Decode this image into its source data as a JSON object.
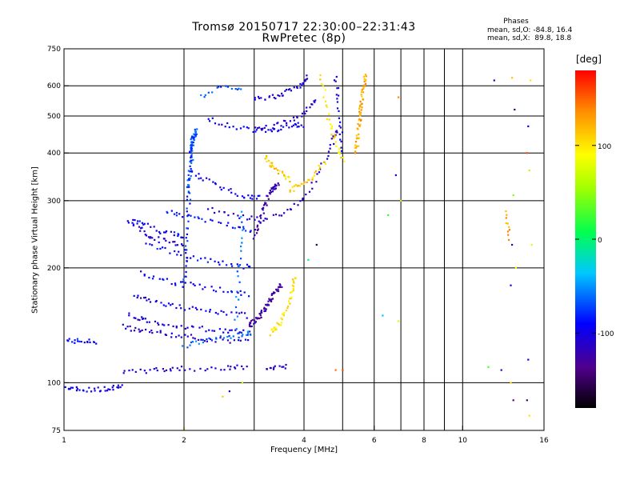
{
  "title_line1": "Tromsø 20150717 22:30:00–22:31:43",
  "title_line2": "RwPretec (8p)",
  "phases": {
    "title": "Phases",
    "line_o": "mean, sd,O: -84.8, 16.4",
    "line_x": "mean, sd,X:  89.8, 18.8"
  },
  "colorbar": {
    "unit": "[deg]",
    "range": [
      -180,
      180
    ],
    "ticks": [
      {
        "label": "100",
        "value": 100
      },
      {
        "label": "0",
        "value": 0
      },
      {
        "label": "-100",
        "value": -100
      }
    ]
  },
  "chart_data": {
    "type": "scatter",
    "xlabel": "Frequency [MHz]",
    "ylabel": "Stationary phase Virtual Height [km]",
    "xscale": "log",
    "yscale": "log",
    "xlim": [
      1,
      16
    ],
    "ylim": [
      75,
      750
    ],
    "x_ticks": [
      {
        "label": "1",
        "value": 1
      },
      {
        "label": "2",
        "value": 2
      },
      {
        "label": "4",
        "value": 4
      },
      {
        "label": "6",
        "value": 6
      },
      {
        "label": "8",
        "value": 8
      },
      {
        "label": "10",
        "value": 10
      },
      {
        "label": "16",
        "value": 16
      }
    ],
    "x_gridlines": [
      2,
      3,
      4,
      5,
      6,
      7,
      8,
      9,
      10
    ],
    "y_ticks": [
      {
        "label": "750",
        "value": 750
      },
      {
        "label": "600",
        "value": 600
      },
      {
        "label": "500",
        "value": 500
      },
      {
        "label": "400",
        "value": 400
      },
      {
        "label": "300",
        "value": 300
      },
      {
        "label": "200",
        "value": 200
      },
      {
        "label": "100",
        "value": 100
      },
      {
        "label": "75",
        "value": 75
      }
    ],
    "y_gridlines": [
      100,
      200,
      300,
      400,
      500,
      600
    ],
    "grid": true,
    "color_by": "phase_deg",
    "traces": [
      {
        "x": [
          1.02,
          1.2
        ],
        "y": [
          129,
          128
        ],
        "phase": -90,
        "n": 18
      },
      {
        "x": [
          1.0,
          1.08,
          1.2,
          1.32,
          1.4
        ],
        "y": [
          97,
          96,
          96,
          97,
          99
        ],
        "phase": -100,
        "n": 35
      },
      {
        "x": [
          1.4,
          1.7,
          1.95,
          2.5,
          2.85
        ],
        "y": [
          106,
          108,
          109,
          109,
          110
        ],
        "phase": -110,
        "n": 40
      },
      {
        "x": [
          1.45,
          1.55,
          1.65,
          1.8,
          2.0
        ],
        "y": [
          265,
          255,
          240,
          235,
          230
        ],
        "phase": -105,
        "n": 30
      },
      {
        "x": [
          1.5,
          1.6,
          1.75,
          1.9,
          2.0
        ],
        "y": [
          270,
          260,
          250,
          245,
          240
        ],
        "phase": -95,
        "n": 25
      },
      {
        "x": [
          1.42,
          1.6,
          1.9,
          2.3,
          2.9
        ],
        "y": [
          140,
          137,
          133,
          130,
          128
        ],
        "phase": -110,
        "n": 45
      },
      {
        "x": [
          1.45,
          1.65,
          2.0,
          2.5,
          2.95
        ],
        "y": [
          150,
          145,
          140,
          137,
          135
        ],
        "phase": -105,
        "n": 45
      },
      {
        "x": [
          1.5,
          1.7,
          2.0,
          2.4,
          2.9
        ],
        "y": [
          170,
          163,
          157,
          153,
          150
        ],
        "phase": -100,
        "n": 40
      },
      {
        "x": [
          1.55,
          1.8,
          2.1,
          2.5,
          2.9
        ],
        "y": [
          195,
          185,
          180,
          175,
          170
        ],
        "phase": -95,
        "n": 35
      },
      {
        "x": [
          1.6,
          1.9,
          2.2,
          2.6,
          2.95
        ],
        "y": [
          230,
          220,
          210,
          205,
          200
        ],
        "phase": -90,
        "n": 35
      },
      {
        "x": [
          1.8,
          2.0,
          2.3,
          2.7,
          2.95
        ],
        "y": [
          280,
          275,
          265,
          258,
          252
        ],
        "phase": -85,
        "n": 30
      },
      {
        "x": [
          2.0,
          2.05,
          2.08,
          2.1
        ],
        "y": [
          180,
          280,
          400,
          440
        ],
        "phase": -80,
        "n": 60
      },
      {
        "x": [
          2.05,
          2.1,
          2.15
        ],
        "y": [
          320,
          420,
          460
        ],
        "phase": -70,
        "n": 40
      },
      {
        "x": [
          2.0,
          2.3,
          2.7,
          2.95
        ],
        "y": [
          125,
          130,
          133,
          135
        ],
        "phase": -65,
        "n": 30
      },
      {
        "x": [
          2.1,
          2.4,
          2.8,
          3.1
        ],
        "y": [
          355,
          330,
          310,
          305
        ],
        "phase": -100,
        "n": 30
      },
      {
        "x": [
          2.2,
          2.4,
          2.6,
          2.8
        ],
        "y": [
          560,
          590,
          600,
          580
        ],
        "phase": -70,
        "n": 15
      },
      {
        "x": [
          2.3,
          2.6,
          3.0,
          3.4,
          3.8,
          3.95
        ],
        "y": [
          495,
          470,
          460,
          462,
          470,
          475
        ],
        "phase": -95,
        "n": 40
      },
      {
        "x": [
          3.0,
          3.3,
          3.6,
          3.9,
          4.1
        ],
        "y": [
          560,
          560,
          575,
          600,
          630
        ],
        "phase": -105,
        "n": 35
      },
      {
        "x": [
          3.0,
          3.4,
          3.9,
          4.3
        ],
        "y": [
          460,
          470,
          500,
          550
        ],
        "phase": -110,
        "n": 35
      },
      {
        "x": [
          2.3,
          2.7,
          3.1,
          3.6,
          4.0,
          4.4,
          4.7,
          4.9
        ],
        "y": [
          285,
          272,
          268,
          278,
          305,
          360,
          420,
          470
        ],
        "phase": -115,
        "n": 55
      },
      {
        "x": [
          3.0,
          3.15,
          3.3,
          3.45
        ],
        "y": [
          240,
          280,
          320,
          330
        ],
        "phase": -125,
        "n": 45
      },
      {
        "x": [
          2.9,
          3.1,
          3.3,
          3.5
        ],
        "y": [
          140,
          150,
          165,
          180
        ],
        "phase": -130,
        "n": 60
      },
      {
        "x": [
          3.3,
          3.5,
          3.7,
          3.8
        ],
        "y": [
          135,
          145,
          165,
          190
        ],
        "phase": 110,
        "n": 40
      },
      {
        "x": [
          3.2,
          3.4,
          3.7
        ],
        "y": [
          390,
          360,
          340
        ],
        "phase": 115,
        "n": 25
      },
      {
        "x": [
          3.7,
          3.9,
          4.2,
          4.5
        ],
        "y": [
          320,
          330,
          345,
          380
        ],
        "phase": 120,
        "n": 25
      },
      {
        "x": [
          4.4,
          4.6,
          4.8,
          5.0
        ],
        "y": [
          640,
          500,
          430,
          380
        ],
        "phase": 110,
        "n": 30
      },
      {
        "x": [
          5.4,
          5.5,
          5.6,
          5.7
        ],
        "y": [
          400,
          480,
          560,
          640
        ],
        "phase": 130,
        "n": 60
      },
      {
        "x": [
          4.8,
          4.9,
          5.0
        ],
        "y": [
          640,
          520,
          400
        ],
        "phase": -100,
        "n": 20
      },
      {
        "x": [
          2.7,
          2.75,
          2.8
        ],
        "y": [
          140,
          200,
          280
        ],
        "phase": -60,
        "n": 20
      },
      {
        "x": [
          12.9,
          13.0
        ],
        "y": [
          280,
          240
        ],
        "phase": 130,
        "n": 10
      },
      {
        "x": [
          3.2,
          3.6
        ],
        "y": [
          110,
          110
        ],
        "phase": -115,
        "n": 12
      }
    ],
    "isolated_points": [
      {
        "x": 4.8,
        "y": 108,
        "phase": 150
      },
      {
        "x": 5.0,
        "y": 108,
        "phase": 160
      },
      {
        "x": 4.1,
        "y": 210,
        "phase": -10
      },
      {
        "x": 4.3,
        "y": 230,
        "phase": -160
      },
      {
        "x": 6.8,
        "y": 350,
        "phase": -110
      },
      {
        "x": 6.9,
        "y": 560,
        "phase": 140
      },
      {
        "x": 7.0,
        "y": 300,
        "phase": 60
      },
      {
        "x": 6.5,
        "y": 275,
        "phase": 10
      },
      {
        "x": 6.3,
        "y": 150,
        "phase": -40
      },
      {
        "x": 6.9,
        "y": 145,
        "phase": 80
      },
      {
        "x": 12.0,
        "y": 620,
        "phase": -110
      },
      {
        "x": 13.3,
        "y": 630,
        "phase": 120
      },
      {
        "x": 13.5,
        "y": 520,
        "phase": -150
      },
      {
        "x": 13.4,
        "y": 310,
        "phase": 40
      },
      {
        "x": 13.2,
        "y": 180,
        "phase": -100
      },
      {
        "x": 14.8,
        "y": 620,
        "phase": 110
      },
      {
        "x": 14.6,
        "y": 470,
        "phase": -90
      },
      {
        "x": 14.5,
        "y": 400,
        "phase": 160
      },
      {
        "x": 14.7,
        "y": 360,
        "phase": 60
      },
      {
        "x": 14.9,
        "y": 230,
        "phase": 80
      },
      {
        "x": 13.3,
        "y": 230,
        "phase": -120
      },
      {
        "x": 13.6,
        "y": 200,
        "phase": 100
      },
      {
        "x": 13.4,
        "y": 90,
        "phase": -140
      },
      {
        "x": 14.5,
        "y": 90,
        "phase": -150
      },
      {
        "x": 14.7,
        "y": 82,
        "phase": 110
      },
      {
        "x": 11.6,
        "y": 110,
        "phase": 20
      },
      {
        "x": 12.5,
        "y": 108,
        "phase": -120
      },
      {
        "x": 13.2,
        "y": 100,
        "phase": 110
      },
      {
        "x": 14.6,
        "y": 115,
        "phase": -100
      },
      {
        "x": 2.5,
        "y": 92,
        "phase": 120
      },
      {
        "x": 2.6,
        "y": 95,
        "phase": -120
      },
      {
        "x": 2.8,
        "y": 100,
        "phase": 60
      },
      {
        "x": 2.0,
        "y": 76,
        "phase": 110
      }
    ]
  }
}
